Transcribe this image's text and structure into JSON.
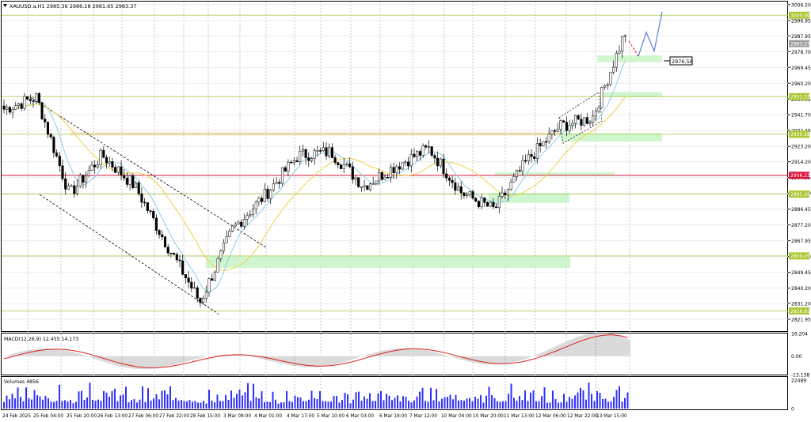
{
  "header": {
    "title": "XAUUSD.a,H1  2985.36 2986.18 2981.65 2983.37",
    "menu_icon": "triangle-down-icon"
  },
  "colors": {
    "background": "#ffffff",
    "frame": "#000000",
    "grid": "#c8c8c8",
    "up_candle": "#ffffff",
    "down_candle": "#000000",
    "candle_outline": "#000000",
    "ma_fast": "#87ceeb",
    "ma_slow": "#f0d04a",
    "level_line": "#b8d46a",
    "level_badge": "#a8c832",
    "red_level": "#dc143c",
    "zone": "#c8f5c8",
    "zone_band": "#fbe0c8",
    "current_price_badge": "#a0a0a0",
    "macd_hist": "#b4b4b4",
    "macd_signal": "#dc2020",
    "volume": "#3030ff",
    "forecast_down": "#e0405a",
    "forecast_up": "#6080d0",
    "channel": "#000000"
  },
  "price_axis": {
    "min": 2815.0,
    "max": 3008.0,
    "ticks": [
      "3006.20",
      "2996.95",
      "2987.95",
      "2978.70",
      "2969.45",
      "2960.20",
      "2950.95",
      "2941.70",
      "2932.45",
      "2923.20",
      "2914.20",
      "2904.95",
      "2895.70",
      "2886.45",
      "2877.20",
      "2867.95",
      "2858.70",
      "2849.45",
      "2840.20",
      "2831.20",
      "2821.95"
    ]
  },
  "level_badges": [
    {
      "label": "3000.00",
      "value": 3000.0,
      "kind": "level"
    },
    {
      "label": "2983.37",
      "value": 2983.37,
      "kind": "current"
    },
    {
      "label": "2952.33",
      "value": 2952.33,
      "kind": "level"
    },
    {
      "label": "2930.28",
      "value": 2930.28,
      "kind": "level"
    },
    {
      "label": "2906.23",
      "value": 2906.23,
      "kind": "red"
    },
    {
      "label": "2895.26",
      "value": 2895.26,
      "kind": "level"
    },
    {
      "label": "2859.05",
      "value": 2859.05,
      "kind": "level"
    },
    {
      "label": "2826.81",
      "value": 2826.81,
      "kind": "level"
    }
  ],
  "price_label": {
    "text": "2976.58",
    "value": 2976.58
  },
  "x_axis": {
    "labels": [
      "24 Feb 2025",
      "25 Feb 04:00",
      "25 Feb 20:00",
      "26 Feb 13:00",
      "27 Feb 06:00",
      "27 Feb 22:00",
      "28 Feb 15:00",
      "3 Mar 08:00",
      "4 Mar 01:00",
      "4 Mar 17:00",
      "5 Mar 10:00",
      "6 Mar 03:00",
      "6 Mar 19:00",
      "7 Mar 12:00",
      "10 Mar 04:00",
      "10 Mar 20:00",
      "11 Mar 13:00",
      "12 Mar 06:00",
      "12 Mar 22:00",
      "13 Mar 15:00"
    ]
  },
  "macd": {
    "label": "MACD(12,26,9) 12.455 14.173",
    "ticks": [
      "16.204",
      "0.00",
      "-13.138"
    ]
  },
  "volumes": {
    "label": "Volumes 4856",
    "ticks": [
      "22489",
      "0"
    ]
  },
  "chart_data": {
    "type": "candlestick",
    "symbol": "XAUUSD.a",
    "timeframe": "H1",
    "last": {
      "open": 2985.36,
      "high": 2986.18,
      "low": 2981.65,
      "close": 2983.37
    },
    "ylim": [
      2815.0,
      3008.0
    ],
    "key_points": [
      {
        "time": "24 Feb 2025",
        "price": 2945
      },
      {
        "time": "25 Feb 04:00",
        "price": 2952
      },
      {
        "time": "25 Feb 20:00",
        "price": 2895
      },
      {
        "time": "26 Feb 13:00",
        "price": 2918
      },
      {
        "time": "27 Feb 06:00",
        "price": 2900
      },
      {
        "time": "27 Feb 22:00",
        "price": 2865
      },
      {
        "time": "28 Feb 15:00",
        "price": 2832
      },
      {
        "time": "3 Mar 08:00",
        "price": 2875
      },
      {
        "time": "4 Mar 01:00",
        "price": 2895
      },
      {
        "time": "4 Mar 17:00",
        "price": 2918
      },
      {
        "time": "5 Mar 10:00",
        "price": 2920
      },
      {
        "time": "6 Mar 03:00",
        "price": 2900
      },
      {
        "time": "6 Mar 19:00",
        "price": 2912
      },
      {
        "time": "7 Mar 12:00",
        "price": 2922
      },
      {
        "time": "10 Mar 04:00",
        "price": 2896
      },
      {
        "time": "10 Mar 20:00",
        "price": 2886
      },
      {
        "time": "11 Mar 13:00",
        "price": 2915
      },
      {
        "time": "12 Mar 06:00",
        "price": 2935
      },
      {
        "time": "12 Mar 22:00",
        "price": 2940
      },
      {
        "time": "13 Mar 15:00",
        "price": 2990
      }
    ],
    "levels": [
      3000.0,
      2952.33,
      2930.28,
      2906.23,
      2895.26,
      2859.05,
      2826.81
    ],
    "zones": [
      {
        "from": 2972.5,
        "to": 2976.5
      },
      {
        "from": 2952.0,
        "to": 2955.0
      },
      {
        "from": 2926.0,
        "to": 2931.0
      },
      {
        "from": 2906.0,
        "to": 2908.0
      },
      {
        "from": 2890.0,
        "to": 2896.0
      },
      {
        "from": 2852.0,
        "to": 2859.0
      }
    ],
    "macd_range": [
      -13.138,
      16.204
    ],
    "volume_max": 22489,
    "grid": true
  }
}
